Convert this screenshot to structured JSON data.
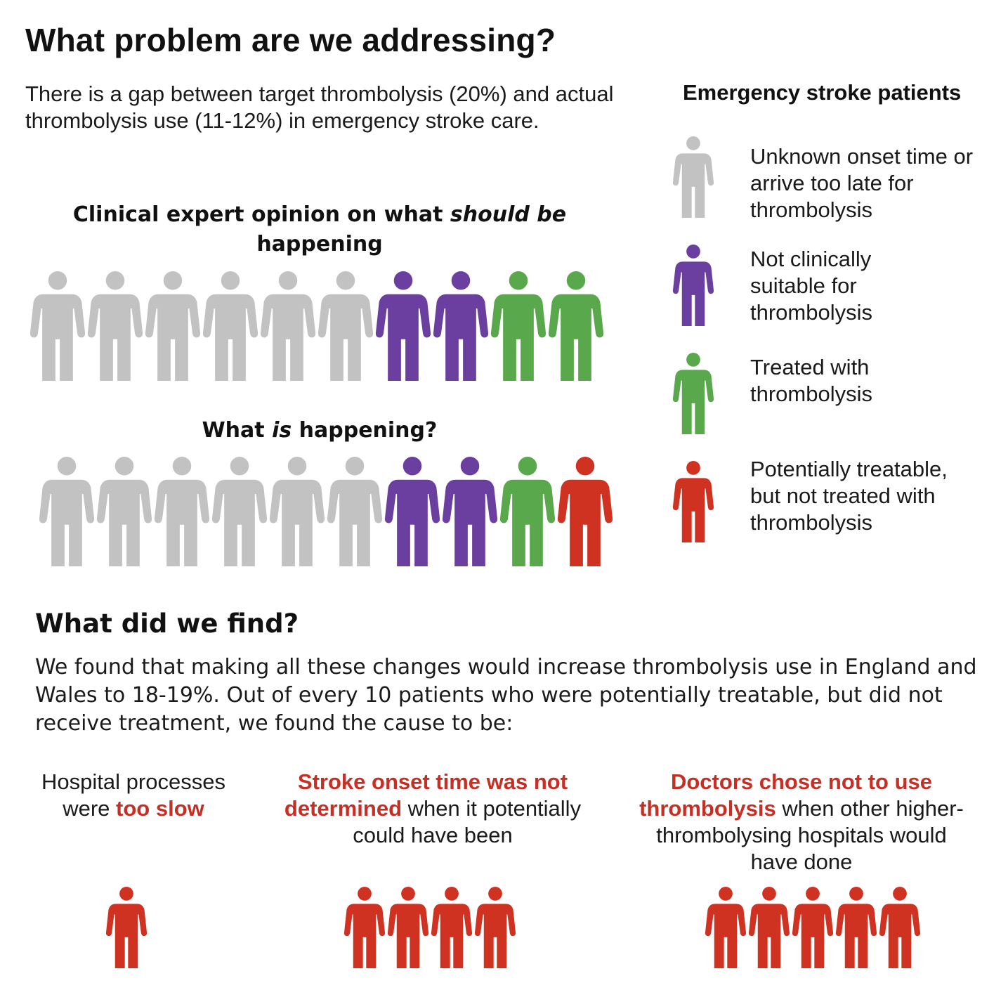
{
  "title": "What problem are we addressing?",
  "intro": "There is a gap between target thrombolysis (20%) and actual thrombolysis use (11-12%) in emergency stroke care.",
  "colors": {
    "grey": "#c2c2c2",
    "purple": "#6b3fa0",
    "green": "#5aa84c",
    "red": "#d03222"
  },
  "should_section": {
    "heading_part1": "Clinical expert opinion on what ",
    "heading_italic": "should be",
    "heading_part2": " happening",
    "people": [
      "grey",
      "grey",
      "grey",
      "grey",
      "grey",
      "grey",
      "purple",
      "purple",
      "green",
      "green"
    ]
  },
  "is_section": {
    "heading_part1": "What ",
    "heading_italic": "is",
    "heading_part2": " happening?",
    "people": [
      "grey",
      "grey",
      "grey",
      "grey",
      "grey",
      "grey",
      "purple",
      "purple",
      "green",
      "red"
    ]
  },
  "legend": {
    "title": "Emergency stroke patients",
    "items": [
      {
        "color": "grey",
        "label": "Unknown onset time or arrive too late for thrombolysis"
      },
      {
        "color": "purple",
        "label": "Not clinically suitable for thrombolysis"
      },
      {
        "color": "green",
        "label": "Treated with thrombolysis"
      },
      {
        "color": "red",
        "label": "Potentially treatable, but not treated with thrombolysis"
      }
    ]
  },
  "findings": {
    "title": "What did we find?",
    "text": "We found that making all these changes would increase thrombolysis use in England and Wales to 18-19%. Out of every 10 patients who were potentially treatable, but did not receive treatment, we found the cause to be:",
    "causes": [
      {
        "pre": "Hospital processes were ",
        "highlight": "too slow",
        "post": "",
        "count": 1
      },
      {
        "pre": "",
        "highlight": "Stroke onset time was not determined",
        "post": " when it potentially could have been",
        "count": 4
      },
      {
        "pre": "",
        "highlight": "Doctors chose not to use thrombolysis",
        "post": " when other higher-thrombolysing hospitals would have done",
        "count": 5
      }
    ]
  }
}
